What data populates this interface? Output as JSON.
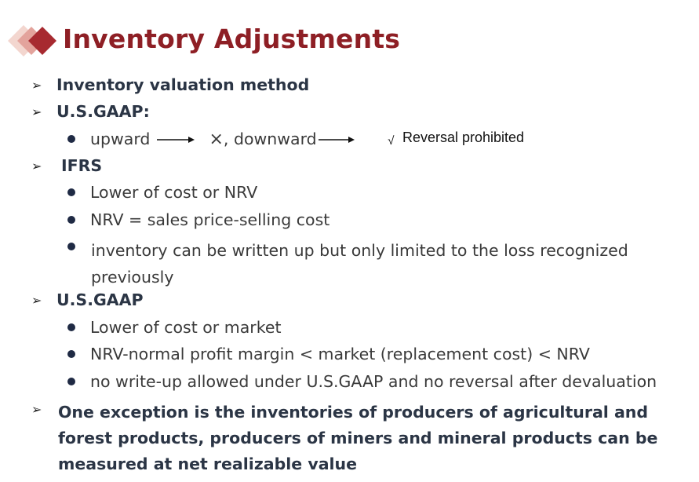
{
  "title": "Inventory Adjustments",
  "items": {
    "valuation": "Inventory valuation method",
    "usgaap1": {
      "heading": "U.S.GAAP:",
      "upward": "upward",
      "x_mark": "×",
      "downward": ", downward",
      "check": "√",
      "reversal": "Reversal prohibited"
    },
    "ifrs": {
      "heading": "IFRS",
      "b1": "Lower of cost or NRV",
      "b2": "NRV = sales price-selling cost",
      "b3": "inventory can be written up but only limited to the loss recognized previously"
    },
    "usgaap2": {
      "heading": "U.S.GAAP",
      "b1": "Lower of cost or market",
      "b2": "NRV-normal profit margin < market (replacement cost) < NRV",
      "b3": "no write-up allowed under U.S.GAAP and no reversal after devaluation"
    },
    "exception": "One exception is the inventories of producers of agricultural and forest products, producers of miners and mineral products can be measured at net realizable value"
  },
  "colors": {
    "title": "#8e1f25",
    "text": "#2b3545",
    "bullet": "#1f2a44"
  },
  "icons": {
    "logo": "diamond-logo-icon",
    "arrow": "arrowhead-icon",
    "bullet": "bullet-dot-icon"
  }
}
